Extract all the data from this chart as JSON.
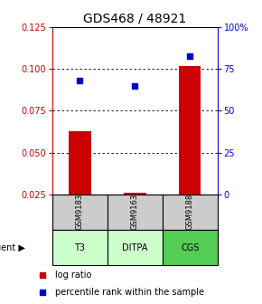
{
  "title": "GDS468 / 48921",
  "samples": [
    "GSM9183",
    "GSM9163",
    "GSM9188"
  ],
  "agents": [
    "T3",
    "DITPA",
    "CGS"
  ],
  "log_ratios": [
    0.063,
    0.026,
    0.102
  ],
  "percentile_ranks": [
    68,
    65,
    83
  ],
  "left_ylim": [
    0.025,
    0.125
  ],
  "left_yticks": [
    0.025,
    0.05,
    0.075,
    0.1,
    0.125
  ],
  "right_yticks": [
    0,
    25,
    50,
    75,
    100
  ],
  "right_ylim": [
    0,
    100
  ],
  "bar_color": "#cc0000",
  "dot_color": "#0000cc",
  "agent_colors": [
    "#ccffcc",
    "#ccffcc",
    "#55cc55"
  ],
  "sample_bg_color": "#cccccc",
  "title_fontsize": 10,
  "tick_fontsize": 7,
  "legend_fontsize": 7
}
